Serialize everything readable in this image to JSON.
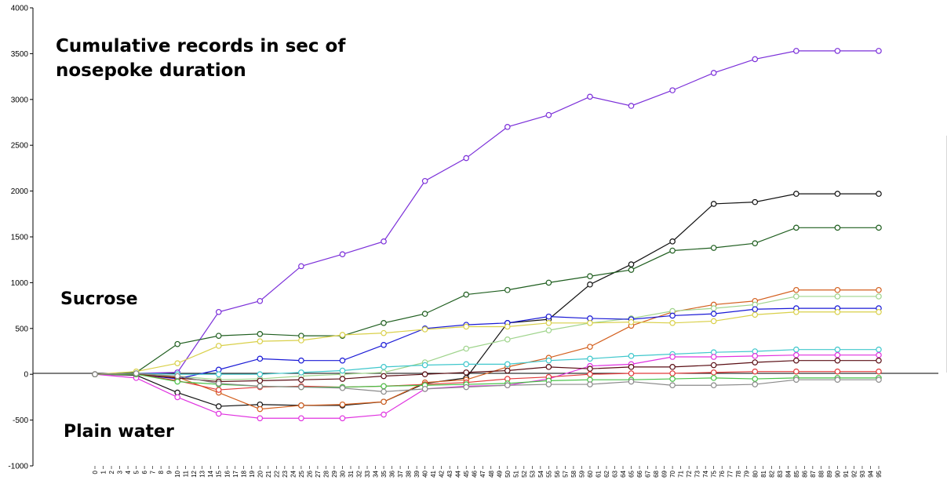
{
  "chart_data": {
    "type": "line",
    "title": "Cumulative records in sec of nosepoke duration",
    "xlabel": "",
    "ylabel": "",
    "ylim": [
      -1000,
      4000
    ],
    "yticks": [
      -1000,
      -500,
      0,
      500,
      1000,
      1500,
      2000,
      2500,
      3000,
      3500,
      4000
    ],
    "xlim": [
      0,
      95
    ],
    "x": [
      0,
      5,
      10,
      15,
      20,
      25,
      30,
      35,
      40,
      45,
      50,
      55,
      60,
      65,
      70,
      75,
      80,
      85,
      90,
      95
    ],
    "annotations": [
      "Sucrose",
      "Plain water"
    ],
    "zero_line": true,
    "grid": false,
    "legend": "none",
    "series": [
      {
        "color": "#7b2fd9",
        "values": [
          0,
          10,
          20,
          680,
          800,
          1180,
          1310,
          1450,
          2110,
          2360,
          2700,
          2830,
          3030,
          2930,
          3100,
          3290,
          3440,
          3530,
          3530,
          3530
        ]
      },
      {
        "color": "#111111",
        "values": [
          0,
          -10,
          -200,
          -350,
          -330,
          -340,
          -340,
          -300,
          -100,
          -40,
          560,
          600,
          980,
          1200,
          1450,
          1860,
          1880,
          1970,
          1970,
          1970
        ]
      },
      {
        "color": "#1f5e1f",
        "values": [
          0,
          20,
          330,
          420,
          440,
          420,
          420,
          560,
          660,
          870,
          920,
          1000,
          1070,
          1140,
          1350,
          1380,
          1430,
          1600,
          1600,
          1600
        ]
      },
      {
        "color": "#d35f1e",
        "values": [
          0,
          0,
          -30,
          -200,
          -380,
          -340,
          -330,
          -300,
          -90,
          -60,
          80,
          180,
          300,
          530,
          680,
          760,
          800,
          920,
          920,
          920
        ]
      },
      {
        "color": "#9fd48c",
        "values": [
          0,
          0,
          -20,
          -60,
          -50,
          -20,
          0,
          20,
          130,
          280,
          380,
          480,
          560,
          610,
          690,
          720,
          760,
          850,
          850,
          850
        ]
      },
      {
        "color": "#1a1ad6",
        "values": [
          0,
          0,
          -50,
          50,
          170,
          150,
          150,
          320,
          500,
          540,
          560,
          630,
          610,
          600,
          640,
          660,
          710,
          720,
          720,
          720
        ]
      },
      {
        "color": "#d9d04a",
        "values": [
          0,
          30,
          120,
          310,
          360,
          370,
          430,
          450,
          490,
          520,
          520,
          560,
          560,
          570,
          560,
          580,
          650,
          680,
          680,
          680
        ]
      },
      {
        "color": "#3fc7cc",
        "values": [
          0,
          10,
          0,
          0,
          0,
          20,
          40,
          80,
          100,
          110,
          110,
          150,
          170,
          200,
          220,
          240,
          250,
          270,
          270,
          270
        ]
      },
      {
        "color": "#e033e0",
        "values": [
          0,
          -40,
          -250,
          -430,
          -480,
          -480,
          -480,
          -440,
          -160,
          -130,
          -120,
          -50,
          90,
          110,
          190,
          190,
          200,
          210,
          210,
          210
        ]
      },
      {
        "color": "#5a0e14",
        "values": [
          0,
          0,
          -40,
          -80,
          -70,
          -60,
          -50,
          -20,
          0,
          20,
          40,
          80,
          60,
          80,
          80,
          100,
          130,
          150,
          150,
          150
        ]
      },
      {
        "color": "#e03a3a",
        "values": [
          0,
          0,
          -70,
          -170,
          -140,
          -130,
          -140,
          -130,
          -110,
          -90,
          -50,
          -30,
          0,
          10,
          10,
          20,
          30,
          30,
          30,
          30
        ]
      },
      {
        "color": "#47c247",
        "values": [
          0,
          0,
          -80,
          -110,
          -130,
          -140,
          -140,
          -130,
          -120,
          -110,
          -100,
          -70,
          -60,
          -60,
          -50,
          -40,
          -50,
          -40,
          -40,
          -40
        ]
      },
      {
        "color": "#8a8a8a",
        "values": [
          0,
          10,
          -20,
          -100,
          -130,
          -140,
          -150,
          -190,
          -160,
          -140,
          -120,
          -110,
          -110,
          -80,
          -120,
          -120,
          -110,
          -60,
          -60,
          -60
        ]
      }
    ]
  }
}
